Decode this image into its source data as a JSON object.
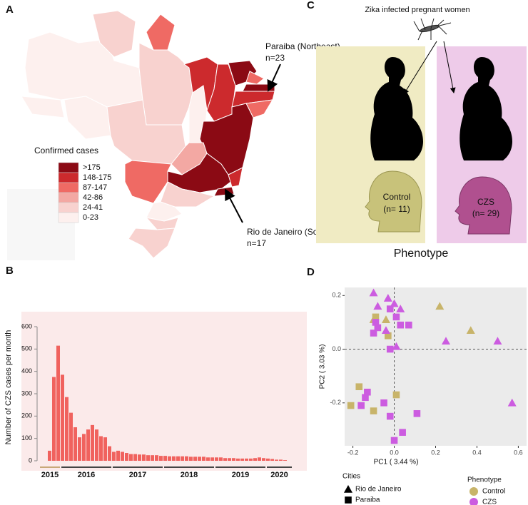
{
  "panel_labels": [
    "A",
    "B",
    "C",
    "D"
  ],
  "map": {
    "legend_title": "Confirmed cases",
    "legend": [
      {
        "label": ">175",
        "color": "#8b0a14"
      },
      {
        "label": "148-175",
        "color": "#cc2a2d"
      },
      {
        "label": "87-147",
        "color": "#ef6a64"
      },
      {
        "label": "42-86",
        "color": "#f3a8a3"
      },
      {
        "label": "24-41",
        "color": "#f8d2cf"
      },
      {
        "label": "0-23",
        "color": "#fdf0ee"
      }
    ],
    "annotations": [
      "Paraiba (Northeast)",
      "n=23",
      "Rio de Janeiro (Southeast)",
      "n=17"
    ]
  },
  "diagram": {
    "title": "Zika infected pregnant women",
    "groups": [
      {
        "label": "Control",
        "n": "(n= 11)"
      },
      {
        "label": "CZS",
        "n": "(n= 29)"
      }
    ],
    "footer": "Phenotype"
  },
  "chart_data": [
    {
      "type": "bar",
      "y_label": "Number of CZS cases per month",
      "color": "#f0625e",
      "values": [
        45,
        375,
        515,
        385,
        285,
        215,
        150,
        105,
        120,
        140,
        160,
        140,
        110,
        105,
        65,
        40,
        45,
        40,
        35,
        30,
        30,
        28,
        28,
        25,
        25,
        25,
        22,
        22,
        20,
        20,
        20,
        20,
        20,
        18,
        18,
        18,
        18,
        15,
        15,
        15,
        15,
        12,
        12,
        12,
        10,
        10,
        10,
        10,
        12,
        15,
        12,
        10,
        8,
        5,
        5,
        3
      ],
      "year_labels": [
        "2015",
        "2016",
        "2017",
        "2018",
        "2019",
        "2020"
      ],
      "ylim": [
        0,
        600
      ],
      "yticks": [
        0,
        100,
        200,
        300,
        400,
        500,
        600
      ]
    },
    {
      "type": "scatter",
      "x_label": "PC1 ( 3.44 %)",
      "y_label": "PC2 ( 3.03 %)",
      "xlim": [
        -0.24,
        0.64
      ],
      "ylim": [
        -0.36,
        0.23
      ],
      "xticks": [
        -0.2,
        {
          "value": 0,
          "label": "0.0"
        },
        0.2,
        0.4,
        0.6
      ],
      "yticks": [
        -0.2,
        {
          "value": 0,
          "label": "0.0"
        },
        0.2
      ],
      "zero_lines": true,
      "cities_title": "Cities",
      "cities": [
        {
          "label": "Rio de Janeiro",
          "shape": "triangle"
        },
        {
          "label": "Paraiba",
          "shape": "square"
        }
      ],
      "phenotype_title": "Phenotype",
      "phenotypes": [
        {
          "label": "Control",
          "color": "#c8b46a"
        },
        {
          "label": "CZS",
          "color": "#cc5ce0"
        }
      ],
      "series": [
        {
          "shape": "triangle",
          "color": "#c8b46a",
          "x": [
            -0.1,
            -0.04,
            0.22,
            0.37
          ],
          "y": [
            0.11,
            0.11,
            0.16,
            0.07
          ]
        },
        {
          "shape": "square",
          "color": "#c8b46a",
          "x": [
            -0.21,
            -0.1,
            0.01,
            -0.17,
            -0.03,
            -0.09
          ],
          "y": [
            -0.21,
            -0.23,
            -0.17,
            -0.14,
            0.05,
            0.12
          ]
        },
        {
          "shape": "triangle",
          "color": "#cc5ce0",
          "x": [
            -0.1,
            -0.03,
            0,
            0.03,
            -0.08,
            -0.04,
            0.01,
            0.25,
            0.5,
            0.57
          ],
          "y": [
            0.21,
            0.19,
            0.17,
            0.15,
            0.16,
            0.07,
            0.01,
            0.03,
            0.03,
            -0.2
          ]
        },
        {
          "shape": "square",
          "color": "#cc5ce0",
          "x": [
            -0.09,
            -0.1,
            -0.08,
            -0.02,
            0.01,
            -0.02,
            0.03,
            0.07,
            -0.13,
            -0.14,
            -0.16,
            -0.05,
            -0.02,
            0.04,
            0,
            0.11
          ],
          "y": [
            0.1,
            0.06,
            0.08,
            0.15,
            0.12,
            0,
            0.09,
            0.09,
            -0.16,
            -0.18,
            -0.21,
            -0.2,
            -0.25,
            -0.31,
            -0.34,
            -0.24
          ]
        }
      ]
    }
  ]
}
